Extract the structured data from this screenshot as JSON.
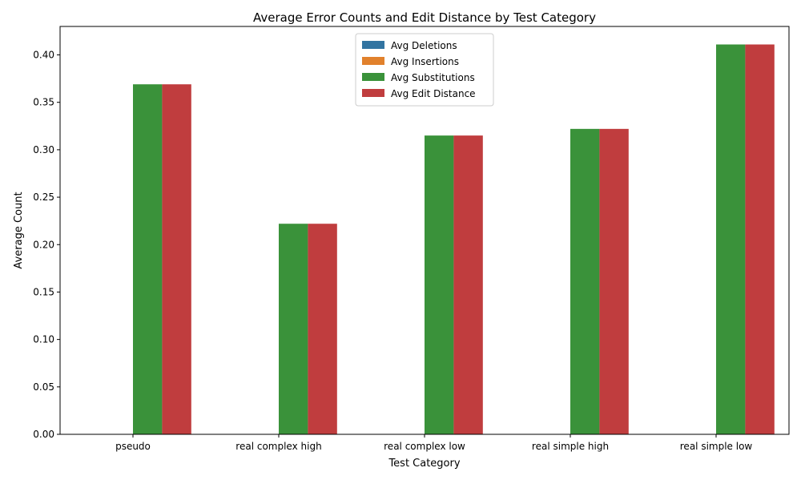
{
  "chart_data": {
    "type": "bar",
    "title": "Average Error Counts and Edit Distance by Test Category",
    "xlabel": "Test Category",
    "ylabel": "Average Count",
    "categories": [
      "pseudo",
      "real complex high",
      "real complex low",
      "real simple high",
      "real simple low"
    ],
    "series": [
      {
        "name": "Avg Deletions",
        "color": "#3274a1",
        "values": [
          0,
          0,
          0,
          0,
          0
        ]
      },
      {
        "name": "Avg Insertions",
        "color": "#e1812c",
        "values": [
          0,
          0,
          0,
          0,
          0
        ]
      },
      {
        "name": "Avg Substitutions",
        "color": "#3a923a",
        "values": [
          0.369,
          0.222,
          0.315,
          0.322,
          0.411
        ]
      },
      {
        "name": "Avg Edit Distance",
        "color": "#c03d3e",
        "values": [
          0.369,
          0.222,
          0.315,
          0.322,
          0.411
        ]
      }
    ],
    "ylim": [
      0,
      0.43
    ],
    "yticks": [
      "0.00",
      "0.05",
      "0.10",
      "0.15",
      "0.20",
      "0.25",
      "0.30",
      "0.35",
      "0.40"
    ],
    "grid": false,
    "legend_position": "top-center"
  }
}
